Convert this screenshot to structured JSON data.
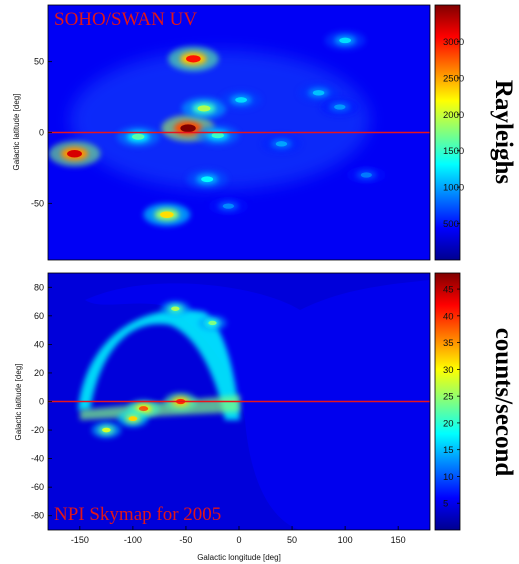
{
  "colors": {
    "cmap": [
      "#00008f",
      "#0000ff",
      "#0080ff",
      "#00ffff",
      "#80ff80",
      "#ffff00",
      "#ff8000",
      "#ff0000",
      "#800000"
    ],
    "equator_line": "#e8141c",
    "overlay_text": "#e0161a"
  },
  "chart_data": [
    {
      "type": "heatmap",
      "overlay_label": "SOHO/SWAN UV",
      "title": "",
      "xlabel": "",
      "ylabel": "Galactic latitude [deg]",
      "xlim": [
        -180,
        180
      ],
      "ylim": [
        -90,
        90
      ],
      "yticks": [
        50,
        0,
        -50
      ],
      "equator_line_lat": 0,
      "colorbar": {
        "label": "Rayleighs",
        "range": [
          0,
          3500
        ],
        "ticks": [
          3000,
          2500,
          2000,
          1500,
          1000,
          500
        ]
      },
      "background_level": 400,
      "hotspots": [
        {
          "lon": -48,
          "lat": 3,
          "value": 3500
        },
        {
          "lon": -155,
          "lat": -15,
          "value": 3200
        },
        {
          "lon": -43,
          "lat": 52,
          "value": 3000
        },
        {
          "lon": -68,
          "lat": -58,
          "value": 2300
        },
        {
          "lon": -33,
          "lat": 17,
          "value": 1900
        },
        {
          "lon": -95,
          "lat": -3,
          "value": 1600
        },
        {
          "lon": -20,
          "lat": -2,
          "value": 1500
        },
        {
          "lon": -30,
          "lat": -33,
          "value": 1300
        },
        {
          "lon": 2,
          "lat": 23,
          "value": 1200
        },
        {
          "lon": 100,
          "lat": 65,
          "value": 1200
        },
        {
          "lon": 75,
          "lat": 28,
          "value": 1100
        },
        {
          "lon": 40,
          "lat": -8,
          "value": 1000
        },
        {
          "lon": 95,
          "lat": 18,
          "value": 950
        },
        {
          "lon": -10,
          "lat": -52,
          "value": 900
        },
        {
          "lon": 120,
          "lat": -30,
          "value": 850
        }
      ]
    },
    {
      "type": "heatmap",
      "overlay_label": "NPI Skymap for 2005",
      "title": "",
      "xlabel": "Galactic longitude [deg]",
      "ylabel": "Galactic latitude [deg]",
      "xlim": [
        -180,
        180
      ],
      "ylim": [
        -90,
        90
      ],
      "xticks": [
        -150,
        -100,
        -50,
        0,
        50,
        100,
        150
      ],
      "yticks": [
        80,
        60,
        40,
        20,
        0,
        -20,
        -40,
        -60,
        -80
      ],
      "equator_line_lat": 0,
      "colorbar": {
        "label": "counts/second",
        "range": [
          0,
          48
        ],
        "ticks": [
          45,
          40,
          35,
          30,
          25,
          20,
          15,
          10,
          5
        ]
      },
      "background_level": 4,
      "arc_region_level": 18,
      "hotspots": [
        {
          "lon": -90,
          "lat": -5,
          "value": 38
        },
        {
          "lon": -55,
          "lat": 0,
          "value": 40
        },
        {
          "lon": -100,
          "lat": -12,
          "value": 32
        },
        {
          "lon": -125,
          "lat": -20,
          "value": 28
        },
        {
          "lon": -60,
          "lat": 65,
          "value": 26
        },
        {
          "lon": -25,
          "lat": 55,
          "value": 24
        }
      ]
    }
  ]
}
